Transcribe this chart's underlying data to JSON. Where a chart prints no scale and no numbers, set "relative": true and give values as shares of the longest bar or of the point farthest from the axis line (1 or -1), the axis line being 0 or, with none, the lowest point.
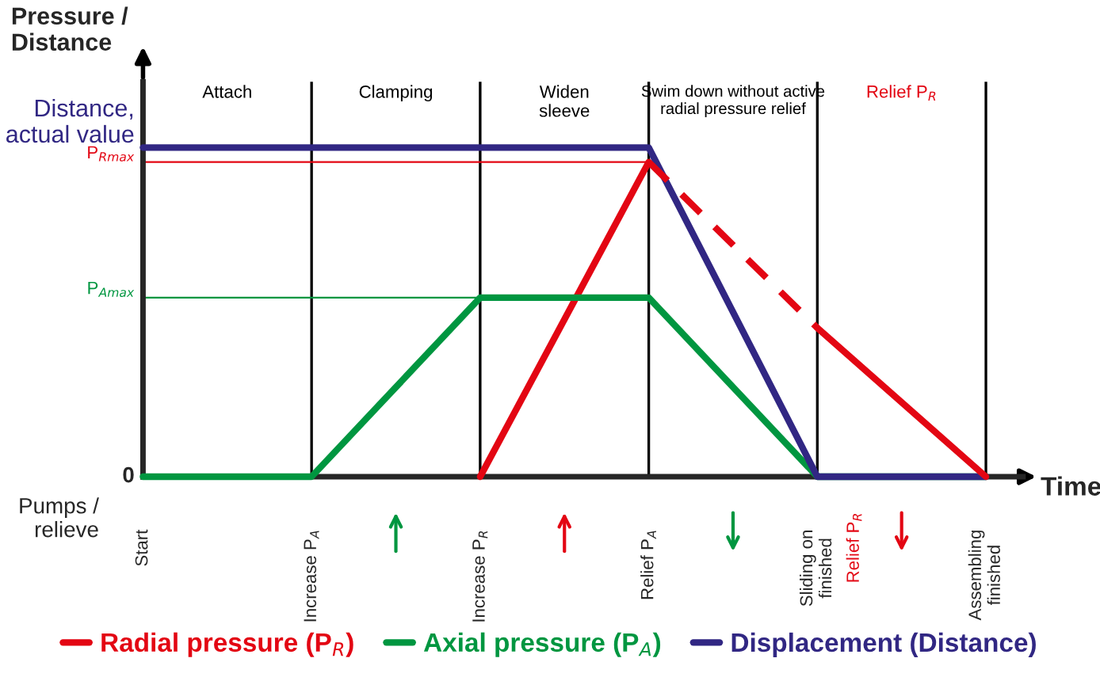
{
  "chart_data": {
    "type": "line",
    "relative": true,
    "ylabel": "Pressure /\nDistance",
    "xlabel": "Time",
    "categories": [
      "Start",
      "Increase P$_{A}$",
      "Increase P$_{R}$",
      "Relief P$_{A}$",
      "Sliding on\nfinished",
      "Assembling\nfinished"
    ],
    "series": [
      {
        "name": "Radial pressure (P$_{R}$)",
        "color": "#e30613",
        "values": [
          null,
          null,
          0,
          0.956,
          null,
          null
        ]
      },
      {
        "name": "Axial pressure (P$_{A}$)",
        "color": "#009640",
        "values": [
          0,
          0,
          0.544,
          0.544,
          0,
          0
        ]
      },
      {
        "name": "Displacement (Distance)",
        "color": "#312783",
        "values": [
          1,
          1,
          1,
          1,
          0,
          0
        ]
      },
      {
        "color": "#e30613",
        "line_style": "dashed",
        "values": [
          null,
          null,
          null,
          0.956,
          0.452,
          null
        ]
      },
      {
        "color": "#e30613",
        "values": [
          null,
          null,
          null,
          null,
          0.452,
          0
        ]
      }
    ],
    "ref_lines": [
      {
        "axis": "y",
        "value": 0.956,
        "label": "P$_{Rmax}$",
        "color": "#e30613"
      },
      {
        "axis": "y",
        "value": 0.544,
        "label": "P$_{Amax}$",
        "color": "#009640"
      }
    ],
    "annotations": [
      "0",
      "Distance,\nactual value",
      "Pumps /\nrelieve",
      "Relief P$_{R}$",
      "Attach",
      "Clamping",
      "Widen\nsleeve",
      "Swim down without active\nradial pressure relief",
      "Relief P$_{R}$"
    ],
    "legend": "bottom",
    "grid": "x",
    "marker": "none",
    "line_style": "solid"
  }
}
